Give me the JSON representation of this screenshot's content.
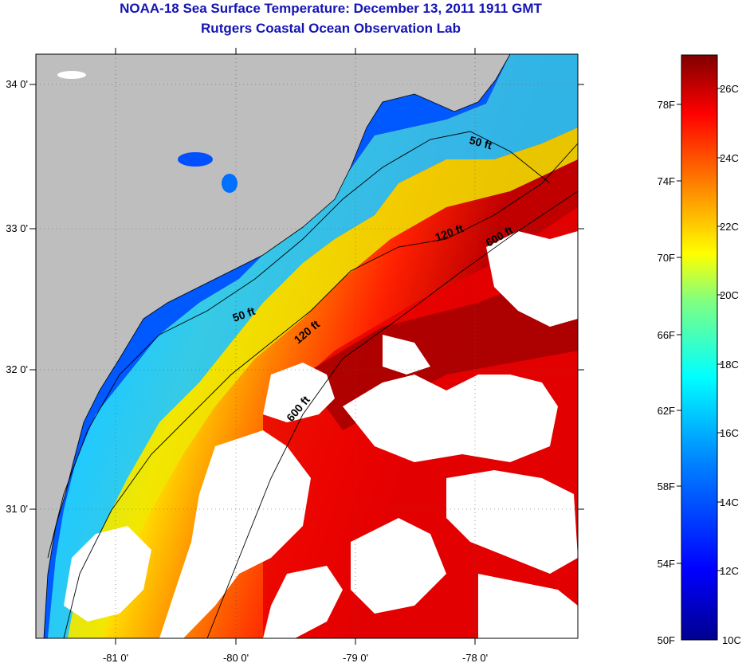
{
  "title": "NOAA-18 Sea Surface Temperature:  December 13, 2011 1911 GMT",
  "subtitle": "Rutgers Coastal Ocean Observation Lab",
  "map": {
    "lon_ticks": [
      "-81 0'",
      "-80 0'",
      "-79 0'",
      "-78 0'"
    ],
    "lat_ticks": [
      "34 0'",
      "33 0'",
      "32 0'",
      "31 0'"
    ],
    "contour_labels": [
      "50 ft",
      "120 ft",
      "600 ft",
      "50 ft",
      "120 ft",
      "600 ft"
    ],
    "land_color": "#bebebe",
    "cloud_color": "#ffffff"
  },
  "colorbar": {
    "fahrenheit_labels": [
      "78F",
      "74F",
      "70F",
      "66F",
      "62F",
      "58F",
      "54F",
      "50F"
    ],
    "celsius_labels": [
      "26C",
      "24C",
      "22C",
      "20C",
      "18C",
      "16C",
      "14C",
      "12C",
      "10C"
    ],
    "colors": [
      "#00008f",
      "#0000ff",
      "#0080ff",
      "#00ffff",
      "#80ff80",
      "#ffff00",
      "#ff8000",
      "#ff0000",
      "#800000"
    ]
  }
}
